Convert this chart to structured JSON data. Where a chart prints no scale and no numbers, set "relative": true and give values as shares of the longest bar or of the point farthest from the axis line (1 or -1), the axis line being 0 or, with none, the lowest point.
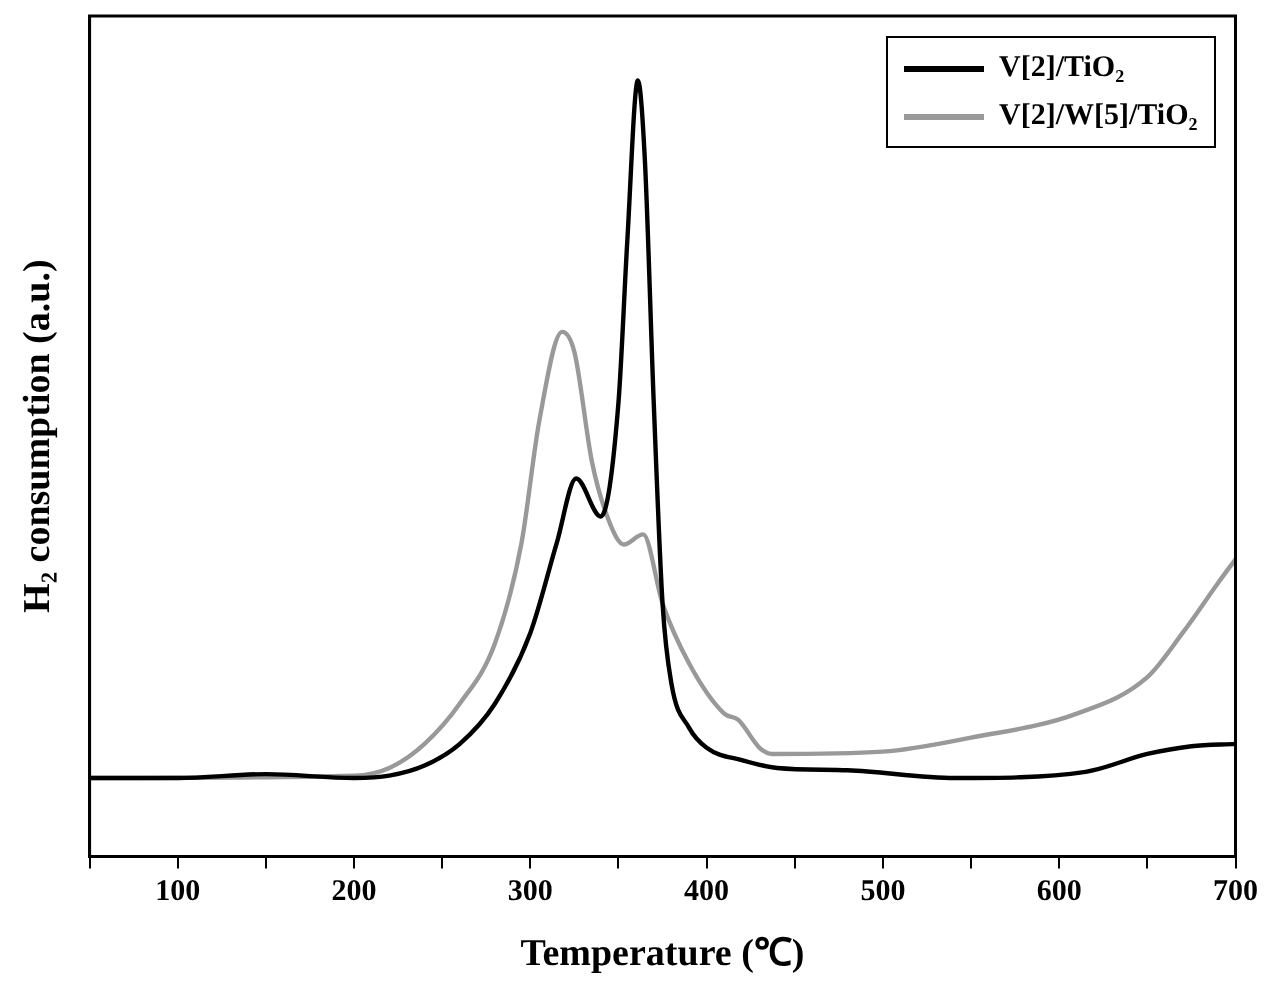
{
  "chart_data": {
    "type": "line",
    "xlabel": "Temperature (℃)",
    "ylabel": "H₂ consumption (a.u.)",
    "relative": true,
    "xlim": [
      50,
      700
    ],
    "xticks": [
      {
        "value": 50,
        "label": null
      },
      100,
      {
        "value": 150,
        "label": null
      },
      200,
      {
        "value": 250,
        "label": null
      },
      300,
      {
        "value": 350,
        "label": null
      },
      400,
      {
        "value": 450,
        "label": null
      },
      500,
      {
        "value": 550,
        "label": null
      },
      600,
      {
        "value": 650,
        "label": null
      },
      700
    ],
    "grid": false,
    "legend": "top right",
    "marker": "none",
    "line_style": "solid",
    "series": [
      {
        "name": "V[2]/TiO₂",
        "color": "#000000",
        "x": [
          50,
          100,
          150,
          200,
          220,
          240,
          260,
          280,
          300,
          315,
          326,
          340,
          350,
          355,
          361,
          365,
          370,
          375,
          380,
          390,
          400,
          420,
          440,
          480,
          541,
          615,
          650,
          675,
          700
        ],
        "values": [
          0.101,
          0.101,
          0.106,
          0.101,
          0.104,
          0.117,
          0.145,
          0.197,
          0.288,
          0.404,
          0.487,
          0.438,
          0.585,
          0.793,
          1,
          0.896,
          0.585,
          0.326,
          0.223,
          0.166,
          0.14,
          0.124,
          0.114,
          0.111,
          0.101,
          0.109,
          0.132,
          0.142,
          0.145
        ]
      },
      {
        "name": "V[2]/W[5]/TiO₂",
        "color": "#999999",
        "x": [
          50,
          200,
          220,
          240,
          260,
          280,
          295,
          305,
          318,
          325,
          335,
          345,
          353,
          364,
          375,
          390,
          410,
          418,
          430,
          437,
          500,
          550,
          610,
          650,
          670,
          690,
          700
        ],
        "values": [
          0.101,
          0.104,
          0.114,
          0.145,
          0.197,
          0.275,
          0.404,
          0.56,
          0.676,
          0.65,
          0.508,
          0.43,
          0.402,
          0.415,
          0.326,
          0.249,
          0.184,
          0.176,
          0.14,
          0.132,
          0.135,
          0.153,
          0.184,
          0.231,
          0.288,
          0.352,
          0.383
        ]
      }
    ]
  }
}
